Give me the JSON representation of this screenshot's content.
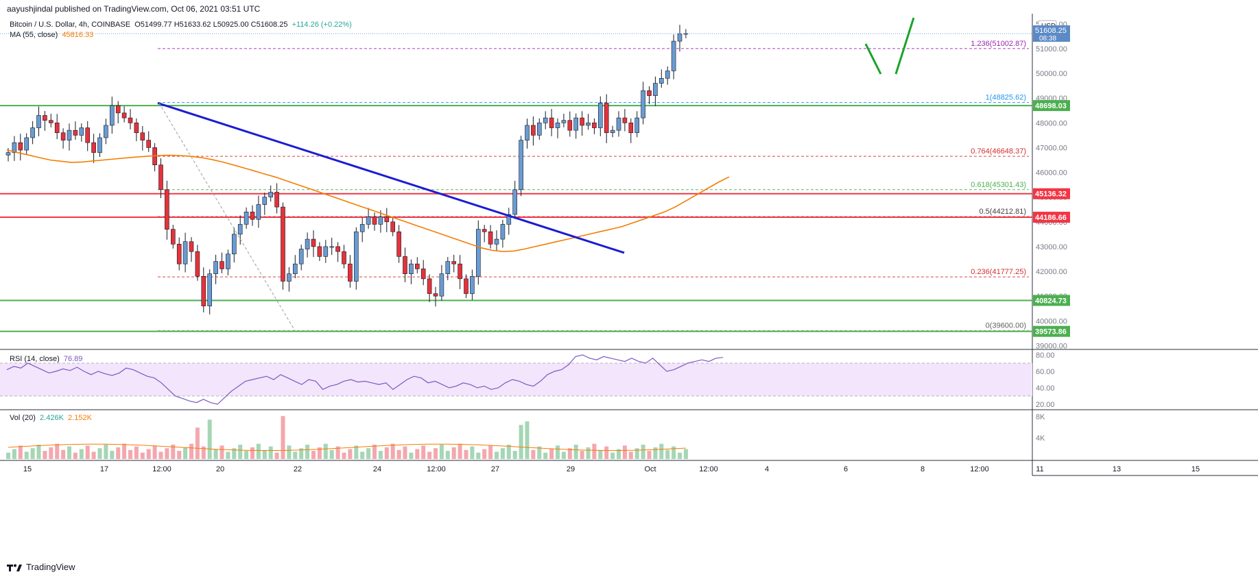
{
  "header": {
    "published": "aayushjindal published on TradingView.com, Oct 06, 2021 03:51 UTC"
  },
  "legend": {
    "symbol": "Bitcoin / U.S. Dollar, 4h, COINBASE",
    "ohlc": "O51499.77  H51633.62  L50925.00  C51608.25",
    "change": "+114.26 (+0.22%)",
    "ma_label": "MA (55, close)",
    "ma_value": "45816.33",
    "rsi_label": "RSI (14, close)",
    "rsi_value": "76.89",
    "vol_label": "Vol (20)",
    "vol_value": "2.426K",
    "vol_ma_value": "2.152K"
  },
  "currency_label": "USD",
  "footer": {
    "brand": "TradingView"
  },
  "colors": {
    "up": "#6a9bd1",
    "down": "#e5323b",
    "ma": "#f57c00",
    "trendline": "#1c1cd4",
    "support": "#4caf50",
    "resistance": "#f23645",
    "rsi": "#7e57c2",
    "rsi_band": "#f3e5fb",
    "vol_up": "#a5d6b5",
    "vol_down": "#f4a7ae"
  },
  "chart_data": {
    "type": "candlestick",
    "price_axis": {
      "ticks": [
        "52000.00",
        "51000.00",
        "50000.00",
        "49000.00",
        "48000.00",
        "47000.00",
        "46000.00",
        "45000.00",
        "44000.00",
        "43000.00",
        "42000.00",
        "41000.00",
        "40000.00",
        "39000.00"
      ],
      "ylim": [
        38900,
        52300
      ]
    },
    "time_axis": {
      "ticks": [
        "15",
        "17",
        "12:00",
        "20",
        "22",
        "24",
        "12:00",
        "27",
        "29",
        "Oct",
        "12:00",
        "4",
        "6",
        "8",
        "12:00",
        "11",
        "13",
        "15"
      ]
    },
    "current_price": {
      "value": "51608.25",
      "countdown": "08:38"
    },
    "horizontal_levels": [
      {
        "value": 48698.03,
        "label": "48698.03",
        "kind": "support"
      },
      {
        "value": 45136.32,
        "label": "45136.32",
        "kind": "resistance"
      },
      {
        "value": 44186.66,
        "label": "44186.66",
        "kind": "resistance"
      },
      {
        "value": 40824.73,
        "label": "40824.73",
        "kind": "support"
      },
      {
        "value": 39573.86,
        "label": "39573.86",
        "kind": "support"
      }
    ],
    "fibonacci": [
      {
        "ratio": "1.236",
        "value": 51002.87,
        "label": "1.236(51002.87)",
        "color": "#9c27b0"
      },
      {
        "ratio": "1",
        "value": 48825.62,
        "label": "1(48825.62)",
        "color": "#2196f3"
      },
      {
        "ratio": "0.764",
        "value": 46648.37,
        "label": "0.764(46648.37)",
        "color": "#d32f2f"
      },
      {
        "ratio": "0.618",
        "value": 45301.43,
        "label": "0.618(45301.43)",
        "color": "#4caf50"
      },
      {
        "ratio": "0.5",
        "value": 44212.81,
        "label": "0.5(44212.81)",
        "color": "#424242"
      },
      {
        "ratio": "0.236",
        "value": 41777.25,
        "label": "0.236(41777.25)",
        "color": "#d32f2f"
      },
      {
        "ratio": "0",
        "value": 39600.0,
        "label": "0(39600.00)",
        "color": "#616161"
      }
    ],
    "close_series": [
      46800,
      47200,
      46900,
      47400,
      47800,
      48300,
      48100,
      48000,
      47600,
      47300,
      47700,
      47500,
      47800,
      47200,
      46800,
      47400,
      47900,
      48700,
      48400,
      48200,
      48000,
      47600,
      47300,
      47000,
      46300,
      45300,
      43700,
      43100,
      42300,
      43200,
      42800,
      41800,
      40600,
      41900,
      42400,
      42100,
      42700,
      43500,
      43900,
      44400,
      44100,
      44700,
      45000,
      45200,
      44600,
      41600,
      41900,
      42300,
      42900,
      43300,
      43000,
      42600,
      43000,
      43000,
      42800,
      42300,
      41600,
      43600,
      43900,
      44200,
      43900,
      44200,
      44000,
      43600,
      42600,
      41900,
      42300,
      42100,
      41700,
      41100,
      41000,
      41900,
      42400,
      42300,
      41700,
      41100,
      41800,
      43700,
      43600,
      43100,
      43300,
      43900,
      44300,
      45300,
      47300,
      47900,
      47500,
      48000,
      48200,
      47800,
      48000,
      48100,
      47700,
      48200,
      47900,
      48000,
      47800,
      48800,
      47600,
      47700,
      48200,
      48000,
      47600,
      48200,
      49300,
      49100,
      49600,
      49800,
      50100,
      51300,
      51600,
      51608
    ],
    "ma55_series": [
      46900,
      46800,
      46700,
      46600,
      46500,
      46450,
      46400,
      46420,
      46460,
      46500,
      46540,
      46580,
      46620,
      46650,
      46680,
      46690,
      46680,
      46650,
      46600,
      46520,
      46420,
      46300,
      46180,
      46050,
      45920,
      45800,
      45650,
      45500,
      45350,
      45200,
      45050,
      44900,
      44750,
      44600,
      44450,
      44300,
      44150,
      44000,
      43850,
      43700,
      43550,
      43400,
      43250,
      43100,
      42950,
      42850,
      42800,
      42820,
      42900,
      43000,
      43100,
      43200,
      43300,
      43400,
      43500,
      43600,
      43700,
      43800,
      43950,
      44100,
      44250,
      44400,
      44600,
      44850,
      45100,
      45350,
      45600,
      45816
    ],
    "rsi": {
      "ylim": [
        15,
        85
      ],
      "band": [
        30,
        70
      ],
      "ticks": [
        "80.00",
        "60.00",
        "40.00",
        "20.00"
      ],
      "value": 76.89
    },
    "volume": {
      "ticks": [
        "8K",
        "4K"
      ],
      "value": "2.426K",
      "ma_value": "2.152K"
    }
  }
}
